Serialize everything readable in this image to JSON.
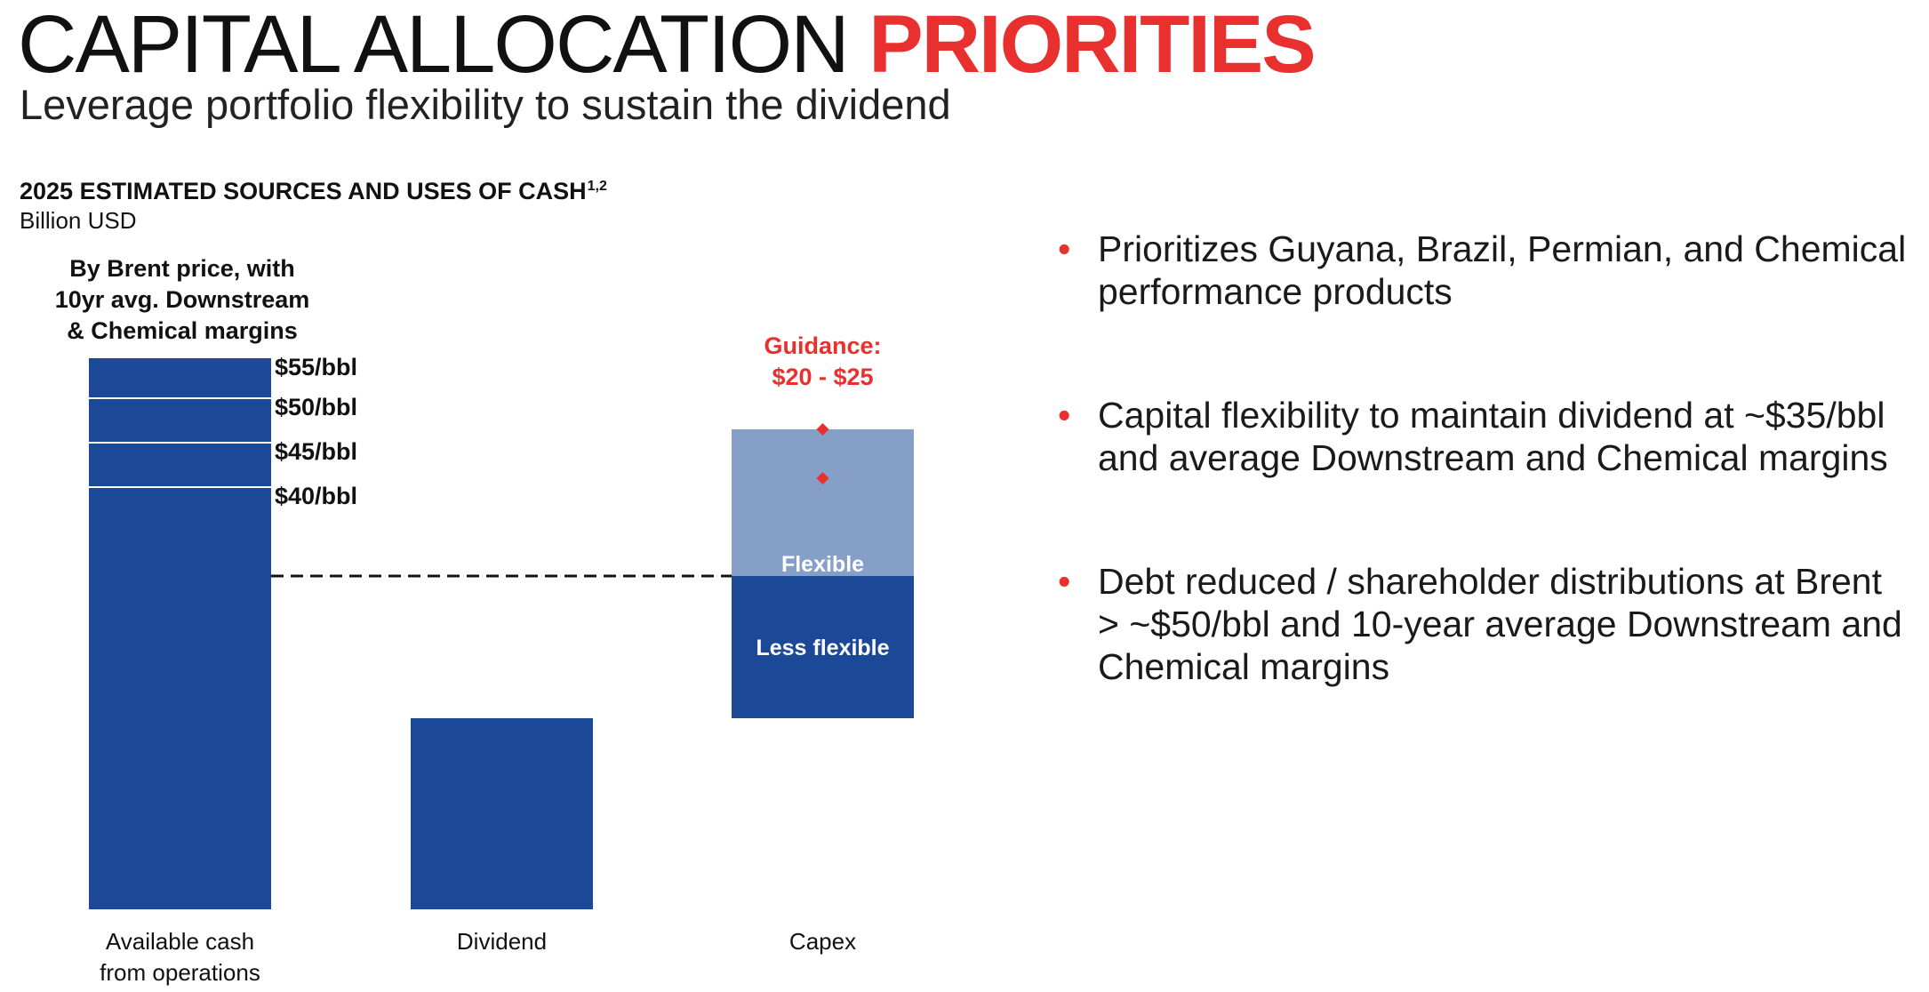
{
  "header": {
    "title_part1": "CAPITAL ALLOCATION ",
    "title_part2": "PRIORITIES",
    "subtitle": "Leverage portfolio flexibility to sustain the dividend"
  },
  "chart_heading": {
    "title": "2025 ESTIMATED SOURCES AND USES OF CASH",
    "footnote": "1,2",
    "unit": "Billion USD"
  },
  "bar_note": {
    "line1": "By Brent price, with",
    "line2": "10yr avg. Downstream",
    "line3": "& Chemical margins"
  },
  "colors": {
    "accent_red": "#e8312f",
    "bar_dark_blue": "#1c4898",
    "bar_light_blue": "#869fc8",
    "text": "#111111"
  },
  "chart_data": {
    "type": "bar",
    "title": "2025 ESTIMATED SOURCES AND USES OF CASH",
    "ylabel": "Billion USD",
    "ylim": [
      0,
      62
    ],
    "grid": false,
    "categories": [
      "Available cash\nfrom operations",
      "Dividend",
      "Capex"
    ],
    "category_labels": [
      [
        "Available cash",
        "from operations"
      ],
      [
        "Dividend"
      ],
      [
        "Capex"
      ]
    ],
    "available_cash": {
      "total": 62,
      "price_levels": [
        {
          "label": "$55/bbl",
          "value": 62
        },
        {
          "label": "$50/bbl",
          "value": 57.5
        },
        {
          "label": "$45/bbl",
          "value": 52.5
        },
        {
          "label": "$40/bbl",
          "value": 47.5
        }
      ]
    },
    "dividend": {
      "value": 21.5
    },
    "capex": {
      "base": 21.5,
      "less_flexible": 16,
      "flexible": 16.5,
      "less_flexible_label": "Less flexible",
      "flexible_label": "Flexible",
      "guidance_label_line1": "Guidance:",
      "guidance_label_line2": "$20 - $25",
      "guidance_points": [
        54,
        48.5
      ]
    },
    "reference_line": {
      "value": 37.5,
      "style": "dashed"
    }
  },
  "bullets": [
    "Prioritizes Guyana, Brazil, Permian, and Chemical performance products",
    "Capital flexibility to maintain dividend at ~$35/bbl and average Downstream and Chemical margins",
    "Debt reduced / shareholder distributions at Brent > ~$50/bbl and 10-year average Downstream and Chemical margins"
  ]
}
